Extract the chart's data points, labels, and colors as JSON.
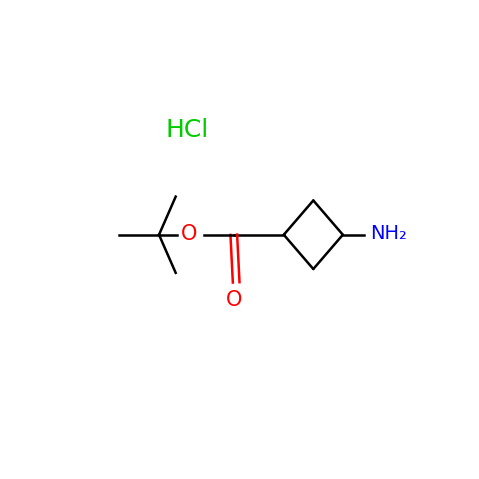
{
  "hcl_label": "HCl",
  "nh2_label": "NH₂",
  "o_label": "O",
  "o_carbonyl_label": "O",
  "hcl_color": "#00cc00",
  "nh2_color": "#0000ff",
  "o_color": "#ff0000",
  "bond_color": "#000000",
  "background_color": "#ffffff",
  "hcl_fontsize": 18,
  "label_fontsize": 14,
  "figsize": [
    4.79,
    4.79
  ],
  "dpi": 100
}
